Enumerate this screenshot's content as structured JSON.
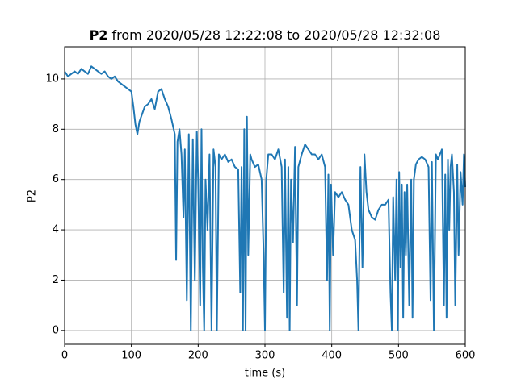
{
  "chart_data": {
    "type": "line",
    "title": [
      "P2",
      "from 2020/05/28 12:22:08 to 2020/05/28 12:32:08"
    ],
    "xlabel": "time (s)",
    "ylabel": "P2",
    "xlim": [
      0,
      600
    ],
    "xticks": [
      0,
      100,
      200,
      300,
      400,
      500,
      600
    ],
    "ylim": [
      -0.55,
      11.28
    ],
    "yticks": [
      0,
      2,
      4,
      6,
      8,
      10
    ],
    "grid": true,
    "x": [
      0,
      5,
      10,
      15,
      20,
      25,
      30,
      35,
      40,
      45,
      50,
      55,
      60,
      65,
      70,
      75,
      80,
      85,
      90,
      95,
      100,
      103,
      106,
      109,
      112,
      116,
      120,
      125,
      130,
      135,
      140,
      145,
      150,
      155,
      160,
      165,
      167,
      169,
      172,
      175,
      178,
      180,
      183,
      186,
      189,
      192,
      195,
      198,
      200,
      203,
      205,
      207,
      209,
      211,
      214,
      217,
      220,
      223,
      226,
      228,
      231,
      235,
      240,
      245,
      250,
      255,
      260,
      263,
      265,
      267,
      269,
      271,
      273,
      275,
      278,
      280,
      285,
      290,
      295,
      298,
      300,
      302,
      305,
      310,
      315,
      320,
      325,
      328,
      330,
      333,
      335,
      337,
      339,
      342,
      345,
      348,
      350,
      355,
      360,
      365,
      370,
      375,
      380,
      385,
      390,
      393,
      395,
      397,
      399,
      402,
      405,
      410,
      415,
      420,
      425,
      430,
      435,
      438,
      440,
      443,
      446,
      449,
      452,
      455,
      460,
      465,
      470,
      475,
      480,
      485,
      488,
      490,
      492,
      495,
      497,
      499,
      501,
      503,
      505,
      507,
      509,
      511,
      513,
      516,
      519,
      521,
      523,
      526,
      530,
      535,
      540,
      545,
      548,
      550,
      553,
      556,
      559,
      562,
      565,
      568,
      570,
      572,
      574,
      576,
      578,
      580,
      583,
      585,
      588,
      590,
      593,
      596,
      598,
      600
    ],
    "series": [
      {
        "name": "P2",
        "color": "#1f77b4",
        "values": [
          10.3,
          10.1,
          10.2,
          10.3,
          10.2,
          10.4,
          10.3,
          10.2,
          10.5,
          10.4,
          10.3,
          10.2,
          10.3,
          10.1,
          10.0,
          10.1,
          9.9,
          9.8,
          9.7,
          9.6,
          9.5,
          8.9,
          8.2,
          7.8,
          8.3,
          8.6,
          8.9,
          9.0,
          9.2,
          8.8,
          9.5,
          9.6,
          9.2,
          8.9,
          8.4,
          7.8,
          2.8,
          7.5,
          8.0,
          7.0,
          4.5,
          7.2,
          1.2,
          7.8,
          0.0,
          7.6,
          2.0,
          7.9,
          6.0,
          1.0,
          8.0,
          2.5,
          0.0,
          6.0,
          4.0,
          7.0,
          0.0,
          7.2,
          6.5,
          0.0,
          7.0,
          6.8,
          7.0,
          6.7,
          6.8,
          6.5,
          6.4,
          1.5,
          6.5,
          0.0,
          8.0,
          0.0,
          8.5,
          3.0,
          7.0,
          6.8,
          6.5,
          6.6,
          6.0,
          3.0,
          0.0,
          6.0,
          7.0,
          7.0,
          6.8,
          7.2,
          6.5,
          1.5,
          6.8,
          0.5,
          6.5,
          0.0,
          6.0,
          3.5,
          7.3,
          1.0,
          6.5,
          7.0,
          7.4,
          7.2,
          7.0,
          7.0,
          6.8,
          7.0,
          6.5,
          2.0,
          6.2,
          0.0,
          5.8,
          3.0,
          5.5,
          5.3,
          5.5,
          5.2,
          5.0,
          4.0,
          3.6,
          2.0,
          0.0,
          6.5,
          2.5,
          7.0,
          5.5,
          4.8,
          4.5,
          4.4,
          4.8,
          5.0,
          5.0,
          5.2,
          1.5,
          0.0,
          5.3,
          2.0,
          6.0,
          0.0,
          6.3,
          2.5,
          5.8,
          0.5,
          5.5,
          3.0,
          5.8,
          1.0,
          6.0,
          0.5,
          6.0,
          6.6,
          6.8,
          6.9,
          6.8,
          6.5,
          1.2,
          6.7,
          0.0,
          7.0,
          6.8,
          7.0,
          7.2,
          1.0,
          6.2,
          0.5,
          6.8,
          4.0,
          6.5,
          7.0,
          5.5,
          1.0,
          6.6,
          3.0,
          6.3,
          5.0,
          7.0,
          5.7
        ]
      }
    ]
  }
}
